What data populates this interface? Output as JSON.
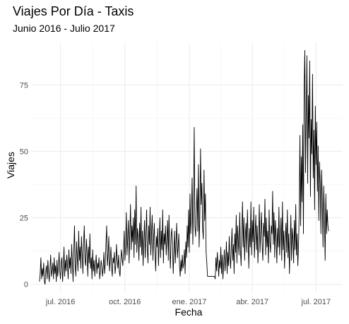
{
  "chart_data": {
    "type": "line",
    "title": "Viajes Por Día - Taxis",
    "subtitle": "Junio 2016 - Julio 2017",
    "xlabel": "Fecha",
    "ylabel": "Viajes",
    "x_range": [
      "2016-05-20",
      "2017-08-08"
    ],
    "ylim": [
      -3,
      91
    ],
    "y_ticks": [
      0,
      25,
      50,
      75
    ],
    "x_ticks": [
      {
        "date": "2016-07-01",
        "label": "jul. 2016"
      },
      {
        "date": "2016-10-01",
        "label": "oct. 2016"
      },
      {
        "date": "2017-01-01",
        "label": "ene. 2017"
      },
      {
        "date": "2017-04-01",
        "label": "abr. 2017"
      },
      {
        "date": "2017-07-01",
        "label": "jul. 2017"
      }
    ],
    "grid": true,
    "line_color": "#000000",
    "series": [
      {
        "start_date": "2016-06-01",
        "values": [
          1,
          4,
          10,
          2,
          6,
          3,
          8,
          1,
          0,
          5,
          7,
          2,
          9,
          4,
          1,
          6,
          11,
          3,
          5,
          8,
          2,
          10,
          4,
          7,
          1,
          9,
          3,
          6,
          12,
          5,
          2,
          8,
          10,
          1,
          6,
          14,
          3,
          9,
          5,
          11,
          7,
          2,
          13,
          6,
          10,
          4,
          15,
          8,
          1,
          12,
          22,
          7,
          3,
          16,
          10,
          5,
          20,
          9,
          14,
          6,
          18,
          11,
          4,
          15,
          22,
          9,
          7,
          17,
          12,
          3,
          14,
          8,
          19,
          6,
          10,
          2,
          13,
          5,
          9,
          3,
          7,
          11,
          4,
          8,
          6,
          10,
          2,
          5,
          9,
          7,
          3,
          6,
          12,
          4,
          8,
          16,
          22,
          7,
          11,
          18,
          5,
          9,
          14,
          6,
          3,
          10,
          8,
          12,
          4,
          7,
          15,
          9,
          6,
          11,
          5,
          3,
          8,
          13,
          10,
          7,
          12,
          20,
          9,
          14,
          27,
          11,
          17,
          24,
          8,
          19,
          30,
          13,
          22,
          16,
          25,
          10,
          28,
          15,
          37,
          12,
          21,
          18,
          9,
          23,
          14,
          29,
          11,
          20,
          7,
          16,
          24,
          10,
          18,
          28,
          13,
          8,
          22,
          15,
          29,
          11,
          19,
          26,
          9,
          17,
          23,
          12,
          5,
          18,
          14,
          21,
          7,
          16,
          25,
          10,
          20,
          13,
          28,
          8,
          19,
          15,
          22,
          11,
          17,
          24,
          9,
          26,
          13,
          6,
          18,
          21,
          15,
          4,
          12,
          20,
          8,
          16,
          23,
          10,
          14,
          19,
          7,
          3,
          9,
          5,
          11,
          6,
          8,
          13,
          4,
          16,
          10,
          22,
          14,
          28,
          12,
          34,
          19,
          25,
          40,
          15,
          30,
          59,
          22,
          18,
          27,
          36,
          20,
          45,
          14,
          25,
          51,
          30,
          38,
          21,
          17,
          43,
          24,
          34,
          12,
          8,
          3,
          3,
          3,
          3,
          3,
          3,
          3,
          3,
          3,
          3,
          3,
          2,
          10,
          5,
          12,
          8,
          3,
          9,
          6,
          14,
          4,
          11,
          2,
          7,
          13,
          5,
          9,
          16,
          4,
          12,
          7,
          18,
          10,
          6,
          14,
          21,
          9,
          15,
          4,
          19,
          12,
          26,
          8,
          22,
          16,
          11,
          27,
          13,
          7,
          20,
          31,
          14,
          25,
          9,
          18,
          23,
          12,
          28,
          17,
          6,
          21,
          14,
          31,
          11,
          24,
          16,
          29,
          10,
          19,
          26,
          13,
          22,
          8,
          17,
          30,
          12,
          20,
          27,
          15,
          9,
          23,
          18,
          32,
          11,
          25,
          14,
          20,
          8,
          28,
          16,
          12,
          22,
          19,
          35,
          15,
          27,
          10,
          24,
          18,
          8,
          21,
          14,
          29,
          11,
          17,
          25,
          9,
          31,
          13,
          20,
          6,
          16,
          23,
          12,
          28,
          10,
          19,
          4,
          14,
          26,
          9,
          21,
          17,
          8,
          24,
          13,
          30,
          11,
          19,
          7,
          15,
          27,
          56,
          22,
          48,
          31,
          60,
          19,
          74,
          88,
          42,
          65,
          86,
          38,
          71,
          55,
          84,
          33,
          62,
          49,
          79,
          40,
          58,
          28,
          67,
          45,
          61,
          35,
          52,
          24,
          46,
          38,
          19,
          43,
          31,
          14,
          37,
          25,
          9,
          34,
          19,
          28,
          22,
          20
        ]
      }
    ]
  }
}
